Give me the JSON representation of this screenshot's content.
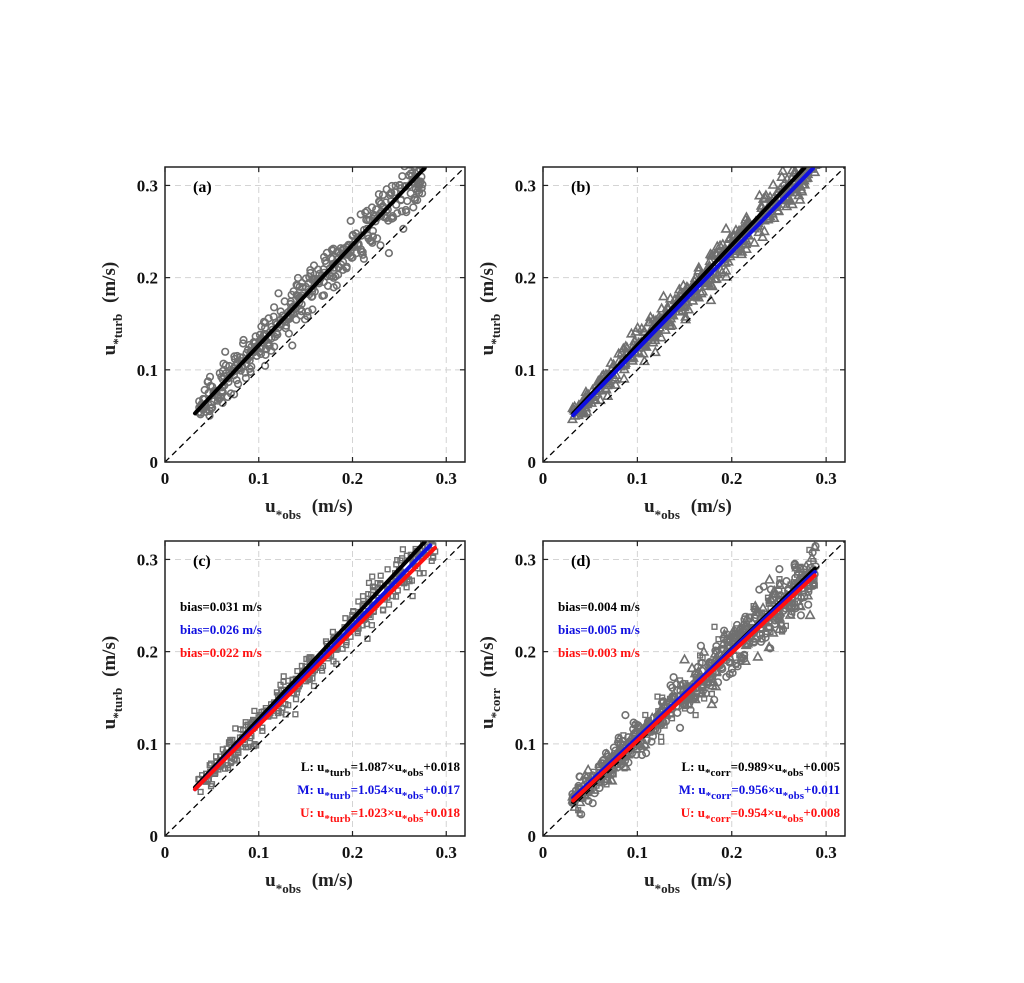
{
  "chart_data": [
    {
      "type": "scatter",
      "panel_label": "(a)",
      "xlabel": {
        "base": "u",
        "sub": "*obs",
        "unit": "(m/s)"
      },
      "ylabel": {
        "base": "u",
        "sub": "*turb",
        "unit": "(m/s)"
      },
      "xlim": [
        0,
        0.32
      ],
      "ylim": [
        0,
        0.32
      ],
      "xticks": [
        0,
        0.1,
        0.2,
        0.3
      ],
      "yticks": [
        0,
        0.1,
        0.2,
        0.3
      ],
      "xtick_labels": [
        "0",
        "0.1",
        "0.2",
        "0.3"
      ],
      "ytick_labels": [
        "0",
        "0.1",
        "0.2",
        "0.3"
      ],
      "grid": true,
      "one_to_one_line": true,
      "marker": "circle",
      "marker_color": "#707070",
      "scatter_range": [
        0.035,
        0.275
      ],
      "scatter_spread": 0.013,
      "scatter_count": 420,
      "fits": [
        {
          "color": "#000000",
          "slope": 1.087,
          "intercept": 0.018,
          "x_range": [
            0.032,
            0.277
          ]
        }
      ],
      "bias_labels": [],
      "equations": []
    },
    {
      "type": "scatter",
      "panel_label": "(b)",
      "xlabel": {
        "base": "u",
        "sub": "*obs",
        "unit": "(m/s)"
      },
      "ylabel": {
        "base": "u",
        "sub": "*turb",
        "unit": "(m/s)"
      },
      "xlim": [
        0,
        0.32
      ],
      "ylim": [
        0,
        0.32
      ],
      "xticks": [
        0,
        0.1,
        0.2,
        0.3
      ],
      "yticks": [
        0,
        0.1,
        0.2,
        0.3
      ],
      "xtick_labels": [
        "0",
        "0.1",
        "0.2",
        "0.3"
      ],
      "ytick_labels": [
        "0",
        "0.1",
        "0.2",
        "0.3"
      ],
      "grid": true,
      "one_to_one_line": true,
      "marker": "triangle",
      "marker_color": "#707070",
      "scatter_range": [
        0.03,
        0.29
      ],
      "scatter_spread": 0.011,
      "scatter_count": 460,
      "fits": [
        {
          "color": "#000000",
          "slope": 1.087,
          "intercept": 0.018,
          "x_range": [
            0.032,
            0.277
          ]
        },
        {
          "color": "#1010e0",
          "slope": 1.054,
          "intercept": 0.017,
          "x_range": [
            0.032,
            0.286
          ]
        }
      ],
      "bias_labels": [],
      "equations": []
    },
    {
      "type": "scatter",
      "panel_label": "(c)",
      "xlabel": {
        "base": "u",
        "sub": "*obs",
        "unit": "(m/s)"
      },
      "ylabel": {
        "base": "u",
        "sub": "*turb",
        "unit": "(m/s)"
      },
      "xlim": [
        0,
        0.32
      ],
      "ylim": [
        0,
        0.32
      ],
      "xticks": [
        0,
        0.1,
        0.2,
        0.3
      ],
      "yticks": [
        0,
        0.1,
        0.2,
        0.3
      ],
      "xtick_labels": [
        "0",
        "0.1",
        "0.2",
        "0.3"
      ],
      "ytick_labels": [
        "0",
        "0.1",
        "0.2",
        "0.3"
      ],
      "grid": true,
      "one_to_one_line": true,
      "marker": "square",
      "marker_color": "#707070",
      "scatter_range": [
        0.035,
        0.29
      ],
      "scatter_spread": 0.011,
      "scatter_count": 380,
      "fits": [
        {
          "color": "#000000",
          "slope": 1.087,
          "intercept": 0.018,
          "x_range": [
            0.032,
            0.277
          ]
        },
        {
          "color": "#1010e0",
          "slope": 1.054,
          "intercept": 0.017,
          "x_range": [
            0.032,
            0.283
          ]
        },
        {
          "color": "#ff1010",
          "slope": 1.023,
          "intercept": 0.018,
          "x_range": [
            0.032,
            0.288
          ]
        }
      ],
      "bias_labels": [
        {
          "text": "bias=0.031 m/s",
          "color": "#000000"
        },
        {
          "text": "bias=0.026 m/s",
          "color": "#1010e0"
        },
        {
          "text": "bias=0.022 m/s",
          "color": "#ff1010"
        }
      ],
      "equations": [
        {
          "prefix": "L:",
          "y_base": "u",
          "y_sub": "*turb",
          "coef": "=1.087",
          "x_base": "u",
          "x_sub": "*obs",
          "intercept": "+0.018",
          "color": "#000000"
        },
        {
          "prefix": "M:",
          "y_base": "u",
          "y_sub": "*turb",
          "coef": "=1.054",
          "x_base": "u",
          "x_sub": "*obs",
          "intercept": "+0.017",
          "color": "#1010e0"
        },
        {
          "prefix": "U:",
          "y_base": "u",
          "y_sub": "*turb",
          "coef": "=1.023",
          "x_base": "u",
          "x_sub": "*obs",
          "intercept": "+0.018",
          "color": "#ff1010"
        }
      ]
    },
    {
      "type": "scatter",
      "panel_label": "(d)",
      "xlabel": {
        "base": "u",
        "sub": "*obs",
        "unit": "(m/s)"
      },
      "ylabel": {
        "base": "u",
        "sub": "*corr",
        "unit": "(m/s)"
      },
      "xlim": [
        0,
        0.32
      ],
      "ylim": [
        0,
        0.32
      ],
      "xticks": [
        0,
        0.1,
        0.2,
        0.3
      ],
      "yticks": [
        0,
        0.1,
        0.2,
        0.3
      ],
      "xtick_labels": [
        "0",
        "0.1",
        "0.2",
        "0.3"
      ],
      "ytick_labels": [
        "0",
        "0.1",
        "0.2",
        "0.3"
      ],
      "grid": true,
      "one_to_one_line": true,
      "marker": "mixed",
      "marker_color": "#707070",
      "scatter_range": [
        0.03,
        0.29
      ],
      "scatter_spread": 0.013,
      "scatter_count": 700,
      "fits": [
        {
          "color": "#000000",
          "slope": 0.989,
          "intercept": 0.005,
          "x_range": [
            0.032,
            0.288
          ]
        },
        {
          "color": "#1010e0",
          "slope": 0.956,
          "intercept": 0.011,
          "x_range": [
            0.032,
            0.288
          ]
        },
        {
          "color": "#ff1010",
          "slope": 0.954,
          "intercept": 0.008,
          "x_range": [
            0.032,
            0.288
          ]
        }
      ],
      "bias_labels": [
        {
          "text": "bias=0.004 m/s",
          "color": "#000000"
        },
        {
          "text": "bias=0.005 m/s",
          "color": "#1010e0"
        },
        {
          "text": "bias=0.003 m/s",
          "color": "#ff1010"
        }
      ],
      "equations": [
        {
          "prefix": "L:",
          "y_base": "u",
          "y_sub": "*corr",
          "coef": "=0.989",
          "x_base": "u",
          "x_sub": "*obs",
          "intercept": "+0.005",
          "color": "#000000"
        },
        {
          "prefix": "M:",
          "y_base": "u",
          "y_sub": "*corr",
          "coef": "=0.956",
          "x_base": "u",
          "x_sub": "*obs",
          "intercept": "+0.011",
          "color": "#1010e0"
        },
        {
          "prefix": "U:",
          "y_base": "u",
          "y_sub": "*corr",
          "coef": "=0.954",
          "x_base": "u",
          "x_sub": "*obs",
          "intercept": "+0.008",
          "color": "#ff1010"
        }
      ]
    }
  ]
}
